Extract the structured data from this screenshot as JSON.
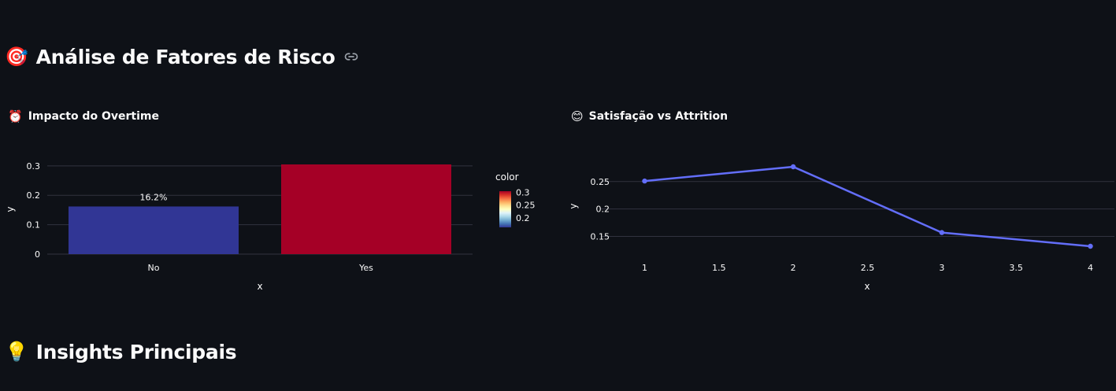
{
  "section_risk": {
    "emoji": "🎯",
    "title": "Análise de Fatores de Risco"
  },
  "overtime": {
    "emoji": "⏰",
    "title": "Impacto do Overtime"
  },
  "satisfaction": {
    "emoji": "😊",
    "title": "Satisfação vs Attrition"
  },
  "section_insights": {
    "emoji": "💡",
    "title": "Insights Principais"
  },
  "chart_data": [
    {
      "type": "bar",
      "categories": [
        "No",
        "Yes"
      ],
      "values": [
        0.162,
        0.305
      ],
      "data_labels": [
        "16.2%",
        ""
      ],
      "xlabel": "x",
      "ylabel": "y",
      "ylim": [
        0,
        0.305
      ],
      "yticks": [
        0,
        0.1,
        0.2,
        0.3
      ],
      "ytick_labels": [
        "0",
        "0.1",
        "0.2",
        "0.3"
      ],
      "grid": true,
      "colorbar": {
        "title": "color",
        "range": [
          0.162,
          0.305
        ],
        "ticks": [
          0.2,
          0.25,
          0.3
        ],
        "tick_labels": [
          "0.2",
          "0.25",
          "0.3"
        ]
      },
      "bar_colors": [
        "#313695",
        "#a50026"
      ]
    },
    {
      "type": "line",
      "x": [
        1,
        2,
        3,
        4
      ],
      "y": [
        0.251,
        0.277,
        0.157,
        0.132
      ],
      "xlabel": "x",
      "ylabel": "y",
      "xlim": [
        1,
        4
      ],
      "ylim": [
        0.132,
        0.277
      ],
      "xticks": [
        1,
        1.5,
        2,
        2.5,
        3,
        3.5,
        4
      ],
      "xtick_labels": [
        "1",
        "1.5",
        "2",
        "2.5",
        "3",
        "3.5",
        "4"
      ],
      "yticks": [
        0.15,
        0.2,
        0.25
      ],
      "ytick_labels": [
        "0.15",
        "0.2",
        "0.25"
      ],
      "grid": true,
      "line_color": "#636efa"
    }
  ]
}
